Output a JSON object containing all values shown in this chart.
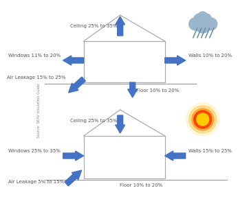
{
  "bg_color": "#ffffff",
  "arrow_color": "#4472c4",
  "house_line_color": "#aaaaaa",
  "text_color": "#555555",
  "top_diagram": {
    "ceiling_label": "Ceiling 25% to 35%",
    "windows_label": "Windows 11% to 20%",
    "walls_label": "Walls 10% to 20%",
    "air_leakage_label": "Air Leakage 15% to 25%",
    "floor_label": "Floor 10% to 20%"
  },
  "bottom_diagram": {
    "ceiling_label": "Ceiling 25% to 35%",
    "windows_label": "Windows 25% to 35%",
    "walls_label": "Walls 15% to 25%",
    "air_leakage_label": "Air Leakage 5% to 15%",
    "floor_label": "Floor 10% to 20%"
  },
  "source_text": "Source: SEAV Insulation Guide",
  "font_size": 5.0,
  "small_font_size": 3.8
}
